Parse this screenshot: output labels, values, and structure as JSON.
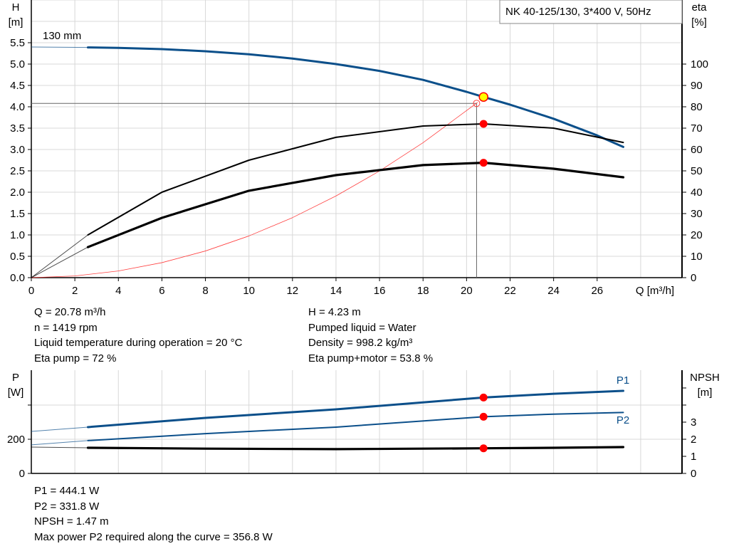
{
  "chart_data": [
    {
      "type": "line",
      "title": "NK 40-125/130, 3*400 V, 50Hz",
      "xlabel": "Q [m³/h]",
      "ylabel": "H\n[m]",
      "y2label": "eta\n[%]",
      "xlim": [
        0,
        29.9
      ],
      "ylim": [
        0,
        6.5
      ],
      "y2lim": [
        0,
        130
      ],
      "x_ticks": [
        "0",
        "2",
        "4",
        "6",
        "8",
        "10",
        "12",
        "14",
        "16",
        "18",
        "20",
        "22",
        "24",
        "26"
      ],
      "y_ticks": [
        "0.0",
        "0.5",
        "1.0",
        "1.5",
        "2.0",
        "2.5",
        "3.0",
        "3.5",
        "4.0",
        "4.5",
        "5.0",
        "5.5"
      ],
      "y2_ticks": [
        "0",
        "10",
        "20",
        "30",
        "40",
        "50",
        "60",
        "70",
        "80",
        "90",
        "100"
      ],
      "grid": true,
      "curve_label": "130 mm",
      "series": [
        {
          "id": "H",
          "axis": "left",
          "color": "#0b4f8a",
          "x": [
            0,
            2.6,
            4,
            6,
            8,
            10,
            12,
            14,
            16,
            18,
            20,
            20.78,
            22,
            24,
            26,
            27.2
          ],
          "y": [
            5.4,
            5.39,
            5.38,
            5.35,
            5.3,
            5.23,
            5.13,
            5.0,
            4.84,
            4.63,
            4.35,
            4.23,
            4.05,
            3.72,
            3.33,
            3.06
          ]
        },
        {
          "id": "eta_pump",
          "axis": "right",
          "color": "#000000",
          "x": [
            0,
            2.6,
            6,
            10,
            14,
            18,
            20.78,
            24,
            27.2
          ],
          "y": [
            0,
            20,
            40,
            55,
            65.7,
            71,
            72,
            70,
            63.3
          ]
        },
        {
          "id": "eta_pump_motor",
          "axis": "right",
          "color": "#000000",
          "x": [
            0,
            2.6,
            6,
            10,
            14,
            18,
            20.78,
            24,
            27.2
          ],
          "y": [
            0,
            14.3,
            28,
            40.7,
            48,
            52.7,
            53.8,
            51,
            47
          ]
        },
        {
          "id": "system_curve",
          "axis": "left",
          "color": "#ff4040",
          "x": [
            0,
            2,
            4,
            6,
            8,
            10,
            12,
            14,
            16,
            18,
            20.5
          ],
          "y": [
            0,
            0.039,
            0.156,
            0.351,
            0.624,
            0.976,
            1.405,
            1.912,
            2.497,
            3.16,
            4.1
          ]
        }
      ],
      "duty_point": {
        "Q": 20.78,
        "H": 4.23,
        "eta_pump": 72,
        "eta_pump_motor": 53.8
      },
      "requested_point": {
        "Q": 20.46,
        "H": 4.08
      }
    },
    {
      "type": "line",
      "ylabel": "P\n[W]",
      "y2label": "NPSH\n[m]",
      "xlim": [
        0,
        29.9
      ],
      "ylim": [
        0,
        604
      ],
      "y2lim": [
        0,
        6.04
      ],
      "y_ticks": [
        "0",
        "200",
        ""
      ],
      "y2_ticks": [
        "0",
        "1",
        "2",
        "3",
        "",
        ""
      ],
      "grid": true,
      "series": [
        {
          "name": "P1",
          "axis": "left",
          "color": "#0b4f8a",
          "x": [
            0,
            2.6,
            8,
            14,
            20.78,
            24,
            27.2
          ],
          "y": [
            246,
            271,
            325,
            375,
            444.1,
            466,
            483
          ]
        },
        {
          "name": "P2",
          "axis": "left",
          "color": "#0b4f8a",
          "x": [
            0,
            2.6,
            8,
            14,
            20.78,
            24,
            27.2
          ],
          "y": [
            167,
            192,
            233,
            271,
            331.8,
            347,
            356.8
          ]
        },
        {
          "id": "NPSH",
          "axis": "right",
          "color": "#000000",
          "x": [
            0,
            2.6,
            8,
            14,
            20.78,
            24,
            27.2
          ],
          "y": [
            1.54,
            1.5,
            1.45,
            1.42,
            1.47,
            1.5,
            1.54
          ]
        }
      ],
      "duty_point": {
        "Q": 20.78,
        "P1": 444.1,
        "P2": 331.8,
        "NPSH": 1.47
      }
    }
  ],
  "info_top": {
    "left": [
      "Q = 20.78 m³/h",
      "n = 1419 rpm",
      "Liquid temperature during operation = 20 °C",
      "Eta pump = 72 %"
    ],
    "right": [
      "H = 4.23 m",
      "Pumped liquid = Water",
      "Density = 998.2 kg/m³",
      "Eta pump+motor = 53.8 %"
    ]
  },
  "info_bottom": [
    "P1 = 444.1 W",
    "P2 = 331.8 W",
    "NPSH = 1.47 m",
    "Max power P2 required along the curve = 356.8 W"
  ]
}
